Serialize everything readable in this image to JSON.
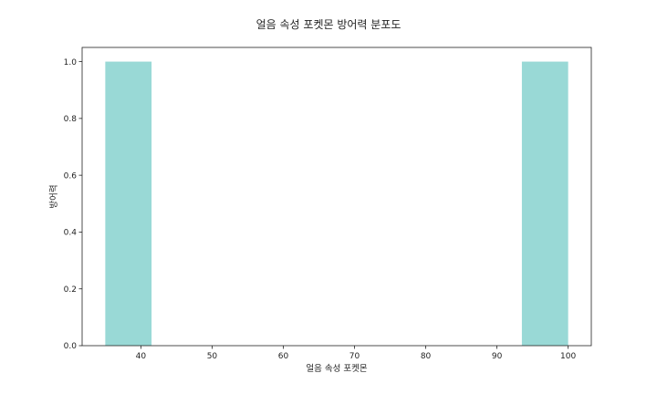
{
  "chart_data": {
    "type": "bar",
    "title": "얼음 속성 포켓몬 방어력 분포도",
    "xlabel": "얼음 속성 포켓몬",
    "ylabel": "방어력",
    "xlim": [
      31.75,
      103.25
    ],
    "ylim": [
      0,
      1.05
    ],
    "xticks": [
      "40",
      "50",
      "60",
      "70",
      "80",
      "90",
      "100"
    ],
    "yticks": [
      "0.0",
      "0.2",
      "0.4",
      "0.6",
      "0.8",
      "1.0"
    ],
    "bins": [
      {
        "x0": 35.0,
        "x1": 41.5,
        "value": 1
      },
      {
        "x0": 41.5,
        "x1": 48.0,
        "value": 0
      },
      {
        "x0": 48.0,
        "x1": 54.5,
        "value": 0
      },
      {
        "x0": 54.5,
        "x1": 61.0,
        "value": 0
      },
      {
        "x0": 61.0,
        "x1": 67.5,
        "value": 0
      },
      {
        "x0": 67.5,
        "x1": 74.0,
        "value": 0
      },
      {
        "x0": 74.0,
        "x1": 80.5,
        "value": 0
      },
      {
        "x0": 80.5,
        "x1": 87.0,
        "value": 0
      },
      {
        "x0": 87.0,
        "x1": 93.5,
        "value": 0
      },
      {
        "x0": 93.5,
        "x1": 100.0,
        "value": 1
      }
    ],
    "bar_color": "#99d9d6",
    "grid": false,
    "legend": "none"
  }
}
